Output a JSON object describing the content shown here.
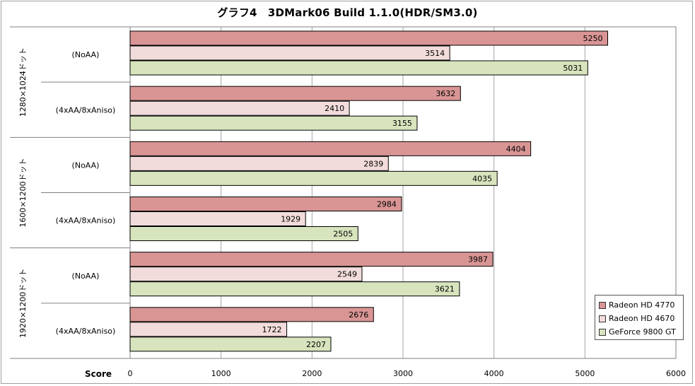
{
  "chart_data": {
    "type": "bar",
    "orientation": "horizontal",
    "title": "グラフ4　3DMark06 Build 1.1.0(HDR/SM3.0)",
    "xlabel": "Score",
    "xlim": [
      0,
      6000
    ],
    "x_ticks": [
      "0",
      "1000",
      "2000",
      "3000",
      "4000",
      "5000",
      "6000"
    ],
    "grid": true,
    "legend_position": "bottom-right",
    "groups": [
      {
        "label": "1280×1024ドット",
        "subgroups": [
          {
            "label": "(NoAA)",
            "values": [
              5250,
              3514,
              5031
            ]
          },
          {
            "label": "(4xAA/8xAniso)",
            "values": [
              3632,
              2410,
              3155
            ]
          }
        ]
      },
      {
        "label": "1600×1200ドット",
        "subgroups": [
          {
            "label": "(NoAA)",
            "values": [
              4404,
              2839,
              4035
            ]
          },
          {
            "label": "(4xAA/8xAniso)",
            "values": [
              2984,
              1929,
              2505
            ]
          }
        ]
      },
      {
        "label": "1920×1200ドット",
        "subgroups": [
          {
            "label": "(NoAA)",
            "values": [
              3987,
              2549,
              3621
            ]
          },
          {
            "label": "(4xAA/8xAniso)",
            "values": [
              2676,
              1722,
              2207
            ]
          }
        ]
      }
    ],
    "series": [
      {
        "name": "Radeon HD 4770",
        "color": "#d99594"
      },
      {
        "name": "Radeon HD 4670",
        "color": "#f2dcdb"
      },
      {
        "name": "GeForce 9800 GT",
        "color": "#d7e4bd"
      }
    ]
  }
}
